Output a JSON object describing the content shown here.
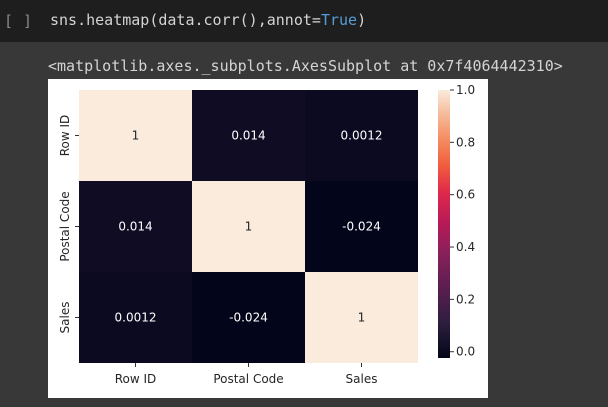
{
  "cell": {
    "run_indicator": "[ ]",
    "code_prefix": "sns.heatmap(data.corr(),annot=",
    "code_keyword": "True",
    "code_suffix": ")"
  },
  "output": {
    "repr": "<matplotlib.axes._subplots.AxesSubplot at 0x7f4064442310>"
  },
  "chart_data": {
    "type": "heatmap",
    "x_labels": [
      "Row ID",
      "Postal Code",
      "Sales"
    ],
    "y_labels": [
      "Row ID",
      "Postal Code",
      "Sales"
    ],
    "values": [
      [
        1,
        0.014,
        0.0012
      ],
      [
        0.014,
        1,
        -0.024
      ],
      [
        0.0012,
        -0.024,
        1
      ]
    ],
    "annotations": [
      [
        "1",
        "0.014",
        "0.0012"
      ],
      [
        "0.014",
        "1",
        "-0.024"
      ],
      [
        "0.0012",
        "-0.024",
        "1"
      ]
    ],
    "colorbar": {
      "range": [
        -0.024,
        1.0
      ],
      "ticks": [
        0.0,
        0.2,
        0.4,
        0.6,
        0.8,
        1.0
      ],
      "tick_labels": [
        "0.0",
        "0.2",
        "0.4",
        "0.6",
        "0.8",
        "1.0"
      ]
    },
    "colormap": "rocket",
    "colors": {
      "low": "#03051a",
      "high": "#faebdd"
    },
    "title": "",
    "xlabel": "",
    "ylabel": ""
  }
}
